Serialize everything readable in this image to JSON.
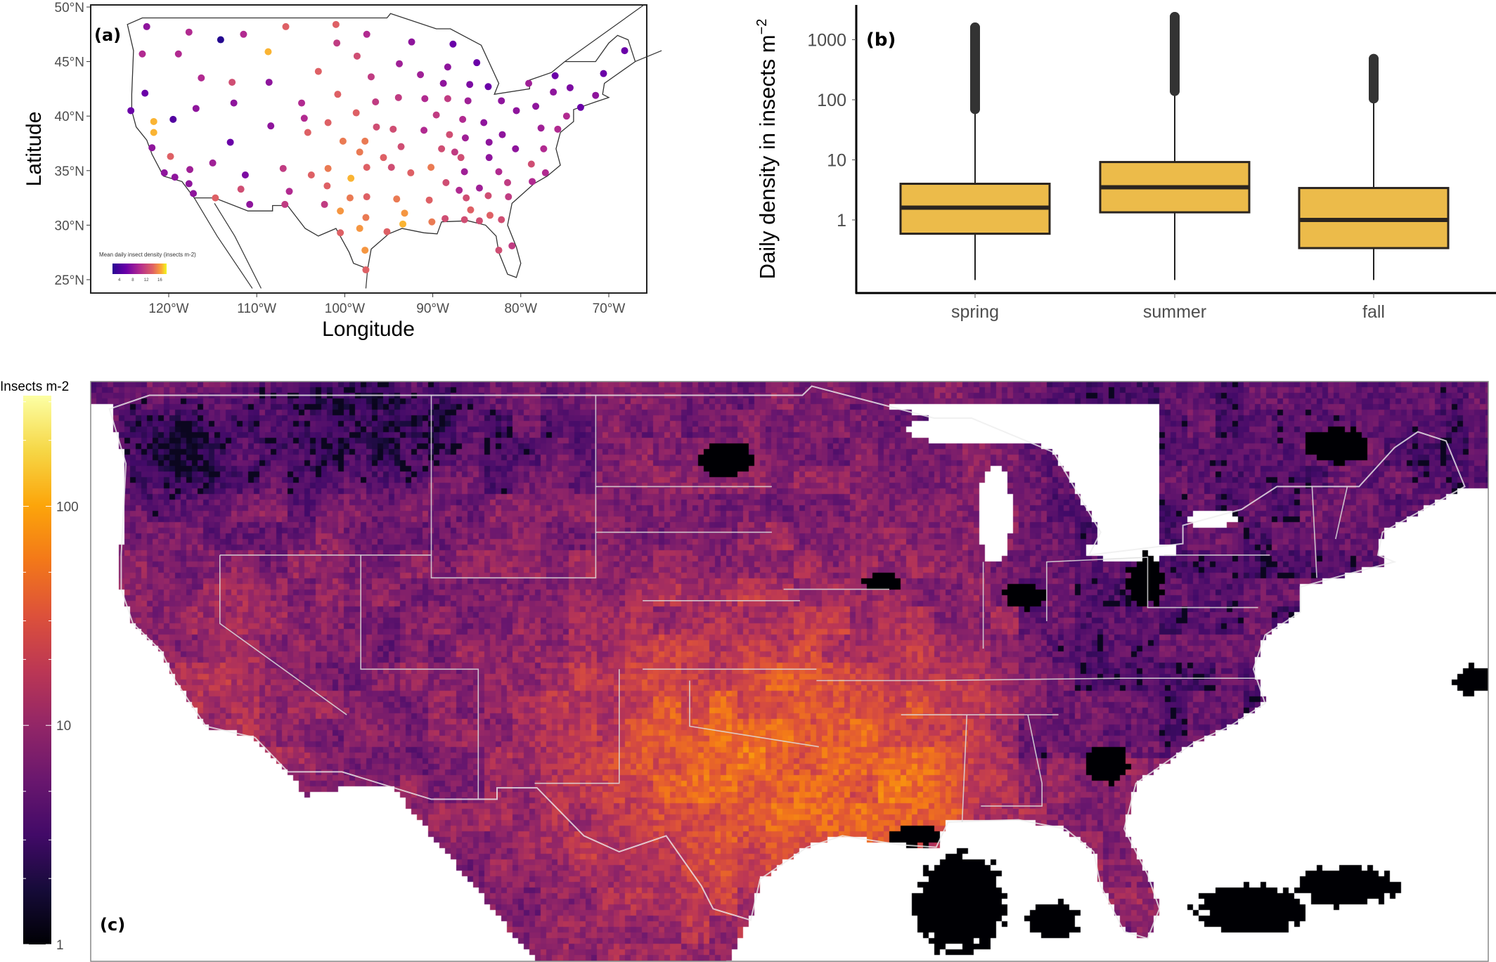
{
  "chart_data": [
    {
      "panel": "(a)",
      "type": "scatter",
      "xlabel": "Longitude",
      "ylabel": "Latitude",
      "x_ticks": [
        "120°W",
        "110°W",
        "100°W",
        "90°W",
        "80°W",
        "70°W"
      ],
      "y_ticks": [
        "25°N",
        "30°N",
        "35°N",
        "40°N",
        "45°N",
        "50°N"
      ],
      "xlim": [
        -128.9,
        -65.7
      ],
      "ylim": [
        24.2,
        50.2
      ],
      "legend": {
        "title": "Mean daily insect density (insects m-2)",
        "ticks": [
          "4",
          "8",
          "12",
          "16"
        ],
        "range": [
          2,
          18
        ],
        "colormap": "plasma",
        "placement": "bottom-left"
      },
      "points": [
        [
          -122.5,
          48.2,
          8
        ],
        [
          -117.7,
          47.7,
          10
        ],
        [
          -114.1,
          47.0,
          3
        ],
        [
          -111.5,
          47.5,
          10
        ],
        [
          -106.7,
          48.2,
          13
        ],
        [
          -101.0,
          48.4,
          13
        ],
        [
          -97.5,
          47.5,
          10
        ],
        [
          -100.9,
          46.7,
          11
        ],
        [
          -108.7,
          45.9,
          16
        ],
        [
          -123.0,
          45.7,
          10
        ],
        [
          -118.9,
          45.7,
          10
        ],
        [
          -98.6,
          45.5,
          12
        ],
        [
          -92.4,
          46.8,
          8
        ],
        [
          -87.7,
          46.6,
          6
        ],
        [
          -85.0,
          44.9,
          6
        ],
        [
          -93.8,
          44.8,
          9
        ],
        [
          -103.0,
          44.1,
          13
        ],
        [
          -88.3,
          44.5,
          8
        ],
        [
          -91.4,
          43.8,
          9
        ],
        [
          -97.0,
          43.6,
          11
        ],
        [
          -116.3,
          43.5,
          10
        ],
        [
          -112.8,
          43.1,
          12
        ],
        [
          -108.6,
          43.1,
          8
        ],
        [
          -88.8,
          43.0,
          8
        ],
        [
          -85.8,
          42.9,
          7
        ],
        [
          -83.7,
          42.7,
          6
        ],
        [
          -79.1,
          43.0,
          9
        ],
        [
          -76.1,
          43.7,
          6
        ],
        [
          -74.4,
          42.6,
          7
        ],
        [
          -70.6,
          43.9,
          6
        ],
        [
          -68.2,
          46.0,
          6
        ],
        [
          -122.7,
          42.1,
          6
        ],
        [
          -112.6,
          41.2,
          8
        ],
        [
          -100.8,
          42.0,
          13
        ],
        [
          -96.5,
          41.3,
          11
        ],
        [
          -93.9,
          41.7,
          11
        ],
        [
          -90.9,
          41.6,
          10
        ],
        [
          -88.3,
          41.6,
          11
        ],
        [
          -86.0,
          41.4,
          9
        ],
        [
          -82.2,
          41.4,
          8
        ],
        [
          -80.5,
          40.5,
          8
        ],
        [
          -78.3,
          40.9,
          8
        ],
        [
          -76.3,
          42.2,
          8
        ],
        [
          -73.2,
          40.8,
          6
        ],
        [
          -71.5,
          41.9,
          8
        ],
        [
          -124.3,
          40.5,
          6
        ],
        [
          -119.5,
          39.7,
          5
        ],
        [
          -121.7,
          39.5,
          16
        ],
        [
          -121.7,
          38.5,
          16
        ],
        [
          -116.9,
          40.7,
          8
        ],
        [
          -104.9,
          41.2,
          10
        ],
        [
          -104.6,
          39.8,
          10
        ],
        [
          -108.4,
          39.1,
          8
        ],
        [
          -101.9,
          39.4,
          13
        ],
        [
          -98.7,
          40.3,
          13
        ],
        [
          -104.2,
          38.5,
          13
        ],
        [
          -96.4,
          39.0,
          12
        ],
        [
          -94.5,
          38.8,
          12
        ],
        [
          -89.6,
          40.1,
          11
        ],
        [
          -86.6,
          39.7,
          10
        ],
        [
          -84.2,
          39.4,
          8
        ],
        [
          -91.0,
          38.7,
          10
        ],
        [
          -88.1,
          38.3,
          12
        ],
        [
          -86.3,
          38.0,
          9
        ],
        [
          -82.1,
          38.3,
          8
        ],
        [
          -77.7,
          38.9,
          9
        ],
        [
          -75.8,
          38.8,
          10
        ],
        [
          -74.8,
          40.0,
          10
        ],
        [
          -113.0,
          37.6,
          6
        ],
        [
          -121.9,
          37.1,
          8
        ],
        [
          -100.2,
          37.7,
          14
        ],
        [
          -97.7,
          37.7,
          14
        ],
        [
          -98.3,
          36.7,
          14
        ],
        [
          -93.6,
          37.2,
          12
        ],
        [
          -89.0,
          37.0,
          12
        ],
        [
          -87.5,
          36.7,
          11
        ],
        [
          -86.8,
          36.2,
          12
        ],
        [
          -83.6,
          37.6,
          8
        ],
        [
          -83.6,
          36.2,
          8
        ],
        [
          -80.6,
          37.0,
          8
        ],
        [
          -77.4,
          37.0,
          10
        ],
        [
          -119.8,
          36.3,
          13
        ],
        [
          -115.0,
          35.7,
          9
        ],
        [
          -95.6,
          36.2,
          13
        ],
        [
          -117.6,
          35.1,
          9
        ],
        [
          -120.5,
          34.8,
          8
        ],
        [
          -119.3,
          34.4,
          8
        ],
        [
          -117.7,
          33.8,
          8
        ],
        [
          -117.2,
          32.9,
          8
        ],
        [
          -107.0,
          35.2,
          11
        ],
        [
          -111.3,
          34.6,
          7
        ],
        [
          -103.8,
          34.6,
          13
        ],
        [
          -101.9,
          35.2,
          14
        ],
        [
          -99.3,
          34.3,
          16
        ],
        [
          -97.5,
          35.3,
          13
        ],
        [
          -94.7,
          35.3,
          12
        ],
        [
          -92.5,
          34.8,
          13
        ],
        [
          -90.2,
          35.3,
          14
        ],
        [
          -86.4,
          34.9,
          9
        ],
        [
          -82.5,
          34.9,
          10
        ],
        [
          -78.8,
          35.6,
          12
        ],
        [
          -77.2,
          34.8,
          10
        ],
        [
          -78.7,
          34.0,
          10
        ],
        [
          -81.5,
          33.9,
          11
        ],
        [
          -84.7,
          33.4,
          9
        ],
        [
          -87.0,
          33.2,
          10
        ],
        [
          -88.5,
          33.9,
          12
        ],
        [
          -111.8,
          33.3,
          12
        ],
        [
          -106.3,
          33.1,
          10
        ],
        [
          -102.0,
          33.6,
          13
        ],
        [
          -114.7,
          32.5,
          13
        ],
        [
          -110.8,
          31.9,
          8
        ],
        [
          -106.8,
          31.9,
          11
        ],
        [
          -102.3,
          31.9,
          11
        ],
        [
          -99.4,
          32.5,
          14
        ],
        [
          -97.5,
          32.6,
          13
        ],
        [
          -94.1,
          32.4,
          14
        ],
        [
          -90.4,
          32.3,
          13
        ],
        [
          -86.2,
          32.5,
          12
        ],
        [
          -83.7,
          32.7,
          12
        ],
        [
          -81.4,
          32.6,
          11
        ],
        [
          -100.5,
          31.3,
          15
        ],
        [
          -93.2,
          31.1,
          15
        ],
        [
          -85.7,
          31.4,
          13
        ],
        [
          -97.6,
          30.7,
          14
        ],
        [
          -90.1,
          30.3,
          14
        ],
        [
          -88.6,
          30.6,
          12
        ],
        [
          -86.4,
          30.5,
          12
        ],
        [
          -84.7,
          30.4,
          12
        ],
        [
          -83.5,
          30.9,
          13
        ],
        [
          -82.2,
          30.5,
          12
        ],
        [
          -93.4,
          30.1,
          16
        ],
        [
          -98.3,
          29.7,
          15
        ],
        [
          -100.5,
          29.3,
          13
        ],
        [
          -95.2,
          29.4,
          13
        ],
        [
          -97.7,
          27.7,
          15
        ],
        [
          -82.5,
          27.7,
          12
        ],
        [
          -81.0,
          28.1,
          11
        ],
        [
          -97.6,
          25.9,
          13
        ]
      ]
    },
    {
      "panel": "(b)",
      "type": "box",
      "ylabel": "Daily density in insects m",
      "ylabel_superscript": "−2",
      "y_scale": "log10",
      "y_ticks": [
        "1",
        "10",
        "100",
        "1000"
      ],
      "ylim": [
        0.08,
        3000
      ],
      "categories": [
        "spring",
        "summer",
        "fall"
      ],
      "fill": "#ecbb4a",
      "boxes": [
        {
          "category": "spring",
          "whisker_low": 0.1,
          "q1": 0.59,
          "median": 1.6,
          "q3": 4.0,
          "whisker_high": 62,
          "outliers_max": 1600,
          "outliers": [
            70,
            90,
            120,
            160,
            200,
            250,
            380,
            700,
            1450,
            1600
          ]
        },
        {
          "category": "summer",
          "whisker_low": 0.1,
          "q1": 1.34,
          "median": 3.5,
          "q3": 9.2,
          "whisker_high": 125,
          "outliers_max": 2400,
          "outliers": [
            140,
            180,
            250,
            350,
            500,
            700,
            1000,
            1400,
            1900,
            2400
          ]
        },
        {
          "category": "fall",
          "whisker_low": 0.1,
          "q1": 0.34,
          "median": 1.0,
          "q3": 3.4,
          "whisker_high": 96,
          "outliers_max": 480,
          "outliers": [
            105,
            130,
            170,
            220,
            290,
            380,
            480
          ]
        }
      ]
    },
    {
      "panel": "(c)",
      "type": "heatmap",
      "colorbar": {
        "title": "Insects m-2",
        "ticks": [
          "1",
          "10",
          "100"
        ],
        "scale": "log10",
        "range": [
          1,
          320
        ],
        "colormap": "inferno"
      }
    }
  ]
}
